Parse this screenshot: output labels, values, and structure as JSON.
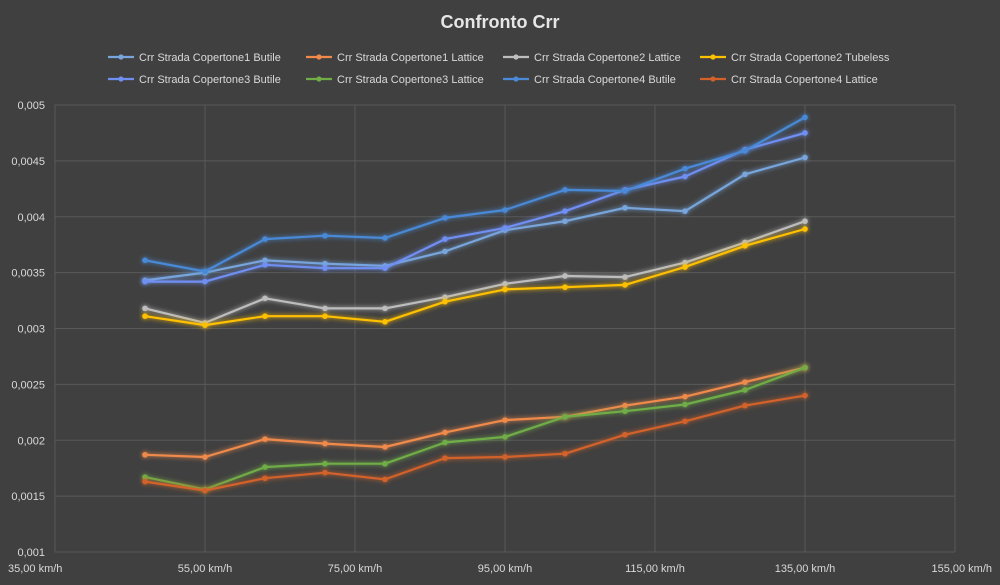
{
  "chart_data": {
    "type": "line",
    "title": "Confronto Crr",
    "xlabel": "",
    "ylabel": "",
    "xlim": [
      35,
      155
    ],
    "ylim": [
      0.001,
      0.005
    ],
    "grid": true,
    "legend_position": "top",
    "x_tick_labels": [
      "35,00 km/h",
      "55,00 km/h",
      "75,00 km/h",
      "95,00 km/h",
      "115,00 km/h",
      "135,00 km/h",
      "155,00 km/h"
    ],
    "y_tick_labels": [
      "0,001",
      "0,0015",
      "0,002",
      "0,0025",
      "0,003",
      "0,0035",
      "0,004",
      "0,0045",
      "0,005"
    ],
    "x": [
      47,
      55,
      63,
      71,
      79,
      87,
      95,
      103,
      111,
      119,
      127,
      135,
      143
    ],
    "series": [
      {
        "name": "Crr Strada Copertone1 Butile",
        "color": "#78a6dc",
        "values": [
          0.00343,
          0.0035,
          0.00361,
          0.00358,
          0.00356,
          0.00369,
          0.00388,
          0.00396,
          0.00408,
          0.00405,
          0.00438,
          0.00453,
          null
        ]
      },
      {
        "name": "Crr Strada Copertone1 Lattice",
        "color": "#f08a4b",
        "values": [
          0.00187,
          0.00185,
          0.00201,
          0.00197,
          0.00194,
          0.00207,
          0.00218,
          0.00221,
          0.00231,
          0.00239,
          0.00252,
          0.00265,
          null
        ]
      },
      {
        "name": "Crr Strada Copertone2 Lattice",
        "color": "#bdbdbd",
        "values": [
          0.00318,
          0.00305,
          0.00327,
          0.00318,
          0.00318,
          0.00328,
          0.0034,
          0.00347,
          0.00346,
          0.00359,
          0.00377,
          0.00396,
          null
        ]
      },
      {
        "name": "Crr Strada Copertone2 Tubeless",
        "color": "#ffc000",
        "values": [
          0.00311,
          0.00303,
          0.00311,
          0.00311,
          0.00306,
          0.00324,
          0.00335,
          0.00337,
          0.00339,
          0.00355,
          0.00374,
          0.00389,
          null
        ]
      },
      {
        "name": "Crr Strada Copertone3 Butile",
        "color": "#6f8ff2",
        "values": [
          0.00342,
          0.00342,
          0.00357,
          0.00354,
          0.00354,
          0.0038,
          0.0039,
          0.00405,
          0.00424,
          0.00436,
          0.0046,
          0.00475,
          null
        ]
      },
      {
        "name": "Crr Strada Copertone3 Lattice",
        "color": "#70ad47",
        "values": [
          0.00167,
          0.00156,
          0.00176,
          0.00179,
          0.00179,
          0.00198,
          0.00203,
          0.00221,
          0.00226,
          0.00232,
          0.00245,
          0.00265,
          null
        ]
      },
      {
        "name": "Crr Strada Copertone4 Butile",
        "color": "#4a8ad8",
        "values": [
          0.00361,
          0.00351,
          0.0038,
          0.00383,
          0.00381,
          0.00399,
          0.00406,
          0.00424,
          0.00423,
          0.00443,
          0.00459,
          0.00489,
          null
        ]
      },
      {
        "name": "Crr Strada Copertone4 Lattice",
        "color": "#d2622a",
        "values": [
          0.00163,
          0.00155,
          0.00166,
          0.00171,
          0.00165,
          0.00184,
          0.00185,
          0.00188,
          0.00205,
          0.00217,
          0.00231,
          0.0024,
          null
        ]
      }
    ]
  }
}
